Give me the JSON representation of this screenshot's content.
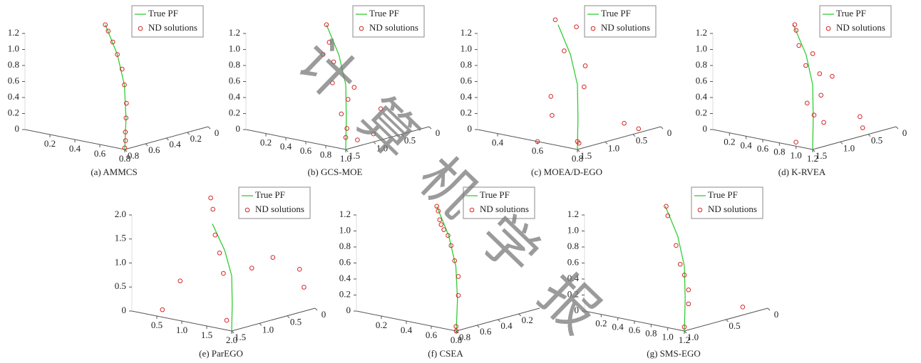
{
  "chart_data": [
    {
      "type": "scatter3d",
      "caption": "(a) AMMCS",
      "xlim": [
        0,
        0.8
      ],
      "ylim": [
        0,
        0.8
      ],
      "zlim": [
        0,
        1.2
      ],
      "xticks": [
        0.2,
        0.4,
        0.6,
        0.8
      ],
      "yticks": [
        0,
        0.2,
        0.4,
        0.6,
        0.8
      ],
      "zticks": [
        0,
        0.2,
        0.4,
        0.6,
        0.8,
        {
          "value": 1,
          "label": "1.0"
        },
        1.2
      ],
      "series": [
        {
          "name": "True PF",
          "color": "#33cc33",
          "x": [
            0.8,
            0.76,
            0.68,
            0.54,
            0.36
          ],
          "y": [
            0.8,
            0.74,
            0.66,
            0.56,
            0.46
          ],
          "z": [
            0,
            0.36,
            0.72,
            1.02,
            1.3
          ]
        },
        {
          "name": "ND solutions",
          "color": "#d62728",
          "x": [
            0.8,
            0.79,
            0.78,
            0.76,
            0.73,
            0.68,
            0.62,
            0.54,
            0.47,
            0.4,
            0.36
          ],
          "y": [
            0.8,
            0.78,
            0.77,
            0.74,
            0.7,
            0.66,
            0.61,
            0.56,
            0.52,
            0.48,
            0.46
          ],
          "z": [
            0.02,
            0.1,
            0.2,
            0.36,
            0.52,
            0.72,
            0.88,
            1.02,
            1.14,
            1.24,
            1.3
          ]
        }
      ]
    },
    {
      "type": "scatter3d",
      "caption": "(b) GCS-MOE",
      "xlim": [
        0,
        1
      ],
      "ylim": [
        0,
        1.5
      ],
      "zlim": [
        0,
        1.2
      ],
      "xticks": [
        0.2,
        0.4,
        0.6,
        0.8,
        {
          "value": 1,
          "label": "1.0"
        }
      ],
      "yticks": [
        0,
        0.5,
        {
          "value": 1,
          "label": "1.0"
        },
        1.5
      ],
      "zticks": [
        0,
        0.2,
        0.4,
        0.6,
        0.8,
        {
          "value": 1,
          "label": "1.0"
        },
        1.2
      ],
      "series": [
        {
          "name": "True PF",
          "color": "#33cc33",
          "x": [
            1,
            0.95,
            0.85,
            0.68,
            0.45
          ],
          "y": [
            1.5,
            1.4,
            1.23,
            1.05,
            0.86
          ],
          "z": [
            0,
            0.36,
            0.72,
            1.02,
            1.3
          ]
        },
        {
          "name": "ND solutions",
          "color": "#d62728",
          "x": [
            0.95,
            1,
            0.9,
            0.8,
            0.7,
            0.6,
            0.5,
            0.45,
            1,
            0.85,
            0.9,
            0.75,
            0.55
          ],
          "y": [
            1.2,
            1,
            1.3,
            1.1,
            1.2,
            1,
            0.9,
            0.86,
            1.5,
            0.6,
            1.4,
            0.9,
            1.1
          ],
          "z": [
            0.05,
            0.1,
            0.2,
            0.5,
            0.7,
            0.9,
            1.1,
            1.3,
            0.15,
            0.3,
            0.4,
            0.6,
            1
          ]
        }
      ]
    },
    {
      "type": "scatter3d",
      "caption": "(c) MOEA/D-EGO",
      "xlim": [
        0.3,
        0.8
      ],
      "ylim": [
        0,
        1.5
      ],
      "zlim": [
        0,
        1.2
      ],
      "xticks": [
        0.4,
        0.6,
        0.8
      ],
      "yticks": [
        0,
        0.5,
        {
          "value": 1,
          "label": "1.0"
        },
        1.5
      ],
      "zticks": [
        0,
        0.2,
        0.4,
        0.6,
        0.8,
        {
          "value": 1,
          "label": "1.0"
        },
        1.2
      ],
      "series": [
        {
          "name": "True PF",
          "color": "#33cc33",
          "x": [
            0.8,
            0.775,
            0.725,
            0.64,
            0.525
          ],
          "y": [
            1.5,
            1.4,
            1.23,
            1.05,
            0.86
          ],
          "z": [
            0,
            0.36,
            0.72,
            1.02,
            1.3
          ]
        },
        {
          "name": "ND solutions",
          "color": "#d62728",
          "x": [
            0.78,
            0.8,
            0.75,
            0.7,
            0.65,
            0.6,
            0.55,
            0.5,
            0.45,
            0.8,
            0.7,
            0.6
          ],
          "y": [
            1.4,
            1.5,
            1.2,
            1,
            1.2,
            0.8,
            1,
            0.9,
            0.7,
            0.4,
            0.3,
            1.5
          ],
          "z": [
            0.05,
            0.1,
            0.7,
            0.9,
            1.1,
            1.3,
            1.4,
            0.4,
            0.1,
            0.05,
            0.05,
            0
          ]
        }
      ]
    },
    {
      "type": "scatter3d",
      "caption": "(d) K-RVEA",
      "xlim": [
        0,
        1.2
      ],
      "ylim": [
        0,
        1.5
      ],
      "zlim": [
        0,
        1.2
      ],
      "xticks": [
        0.2,
        0.4,
        0.6,
        0.8,
        {
          "value": 1,
          "label": "1.0"
        },
        1.2
      ],
      "yticks": [
        0,
        0.5,
        {
          "value": 1,
          "label": "1.0"
        },
        1.5
      ],
      "zticks": [
        0,
        0.2,
        0.4,
        0.6,
        0.8,
        {
          "value": 1,
          "label": "1.0"
        },
        1.2
      ],
      "series": [
        {
          "name": "True PF",
          "color": "#33cc33",
          "x": [
            1.2,
            1.14,
            1.02,
            0.82,
            0.54
          ],
          "y": [
            1.5,
            1.4,
            1.23,
            1.05,
            0.86
          ],
          "z": [
            0,
            0.36,
            0.72,
            1.02,
            1.3
          ]
        },
        {
          "name": "ND solutions",
          "color": "#d62728",
          "x": [
            1.2,
            1.15,
            1.1,
            1,
            0.95,
            0.85,
            0.8,
            0.7,
            0.6,
            0.55,
            1.2,
            1.1,
            1,
            0.9
          ],
          "y": [
            1.3,
            1.4,
            1.2,
            1.3,
            1,
            1.1,
            0.9,
            1,
            0.9,
            0.85,
            0.6,
            0.5,
            1.5,
            0.7
          ],
          "z": [
            0.3,
            0.4,
            0.6,
            0.5,
            0.8,
            0.9,
            1,
            1.1,
            1.25,
            1.3,
            0.1,
            0.2,
            0.05,
            0.7
          ]
        }
      ]
    },
    {
      "type": "scatter3d",
      "caption": "(e) ParEGO",
      "xlim": [
        0,
        2
      ],
      "ylim": [
        0,
        1.5
      ],
      "zlim": [
        0,
        2
      ],
      "xticks": [
        0.5,
        {
          "value": 1,
          "label": "1.0"
        },
        1.5,
        {
          "value": 2,
          "label": "2.0"
        }
      ],
      "yticks": [
        0,
        0.5,
        {
          "value": 1,
          "label": "1.0"
        },
        1.5
      ],
      "zticks": [
        0,
        0.5,
        {
          "value": 1,
          "label": "1.0"
        },
        1.5,
        {
          "value": 2,
          "label": "2.0"
        }
      ],
      "series": [
        {
          "name": "True PF",
          "color": "#33cc33",
          "x": [
            2,
            1.9,
            1.7,
            1.36,
            0.9
          ],
          "y": [
            1.5,
            1.4,
            1.23,
            1.05,
            0.86
          ],
          "z": [
            0,
            0.5,
            1,
            1.4,
            1.8
          ]
        },
        {
          "name": "ND solutions",
          "color": "#d62728",
          "x": [
            1.9,
            1.5,
            1.2,
            1,
            0.9,
            0.8,
            1.4,
            1.6,
            2,
            1.8,
            0.5,
            0.3
          ],
          "y": [
            1.5,
            1.2,
            1,
            0.9,
            0.85,
            0.8,
            0.6,
            0.4,
            0.2,
            0.1,
            1.4,
            0.9
          ],
          "z": [
            0.2,
            1,
            1.3,
            1.6,
            2.1,
            2.3,
            0.9,
            1.1,
            0.5,
            0.8,
            0.1,
            0.5
          ]
        }
      ]
    },
    {
      "type": "scatter3d",
      "caption": "(f) CSEA",
      "xlim": [
        0,
        0.8
      ],
      "ylim": [
        0,
        0.8
      ],
      "zlim": [
        0,
        1.2
      ],
      "xticks": [
        0.2,
        0.4,
        0.6,
        0.8
      ],
      "yticks": [
        0.2,
        0.4,
        0.6,
        0.8
      ],
      "zticks": [
        0,
        0.2,
        0.4,
        0.6,
        0.8,
        {
          "value": 1,
          "label": "1.0"
        },
        1.2
      ],
      "series": [
        {
          "name": "True PF",
          "color": "#33cc33",
          "x": [
            0.8,
            0.76,
            0.68,
            0.54,
            0.36
          ],
          "y": [
            0.8,
            0.74,
            0.66,
            0.56,
            0.46
          ],
          "z": [
            0,
            0.36,
            0.72,
            1.02,
            1.3
          ]
        },
        {
          "name": "ND solutions",
          "color": "#d62728",
          "x": [
            0.8,
            0.79,
            0.75,
            0.7,
            0.62,
            0.55,
            0.5,
            0.45,
            0.42,
            0.4,
            0.38,
            0.36
          ],
          "y": [
            0.8,
            0.79,
            0.72,
            0.66,
            0.6,
            0.55,
            0.52,
            0.5,
            0.49,
            0.48,
            0.47,
            0.46
          ],
          "z": [
            0,
            0.05,
            0.4,
            0.6,
            0.75,
            0.9,
            1,
            1.05,
            1.1,
            1.15,
            1.25,
            1.3
          ]
        }
      ]
    },
    {
      "type": "scatter3d",
      "caption": "(g) SMS-EGO",
      "xlim": [
        0,
        1.2
      ],
      "ylim": [
        0,
        1
      ],
      "zlim": [
        0,
        1.2
      ],
      "xticks": [
        0.2,
        0.4,
        0.6,
        0.8,
        {
          "value": 1,
          "label": "1.0"
        },
        1.2
      ],
      "yticks": [
        0,
        0.5,
        {
          "value": 1,
          "label": "1.0"
        }
      ],
      "zticks": [
        0,
        0.2,
        0.4,
        0.6,
        0.8,
        {
          "value": 1,
          "label": "1.0"
        },
        1.2
      ],
      "series": [
        {
          "name": "True PF",
          "color": "#33cc33",
          "x": [
            1.2,
            1.14,
            1.02,
            0.82,
            0.54
          ],
          "y": [
            1,
            0.93,
            0.82,
            0.7,
            0.57
          ],
          "z": [
            0,
            0.36,
            0.72,
            1.02,
            1.3
          ]
        },
        {
          "name": "ND solutions",
          "color": "#d62728",
          "x": [
            1.2,
            1.15,
            1.1,
            1,
            0.9,
            0.8,
            0.6,
            0.55,
            1.2
          ],
          "y": [
            1,
            0.9,
            0.85,
            0.8,
            0.75,
            0.7,
            0.6,
            0.57,
            0.3
          ],
          "z": [
            0.05,
            0.3,
            0.45,
            0.6,
            0.7,
            0.9,
            1.2,
            1.3,
            0.1
          ]
        }
      ]
    }
  ],
  "watermark": "计算机学报"
}
